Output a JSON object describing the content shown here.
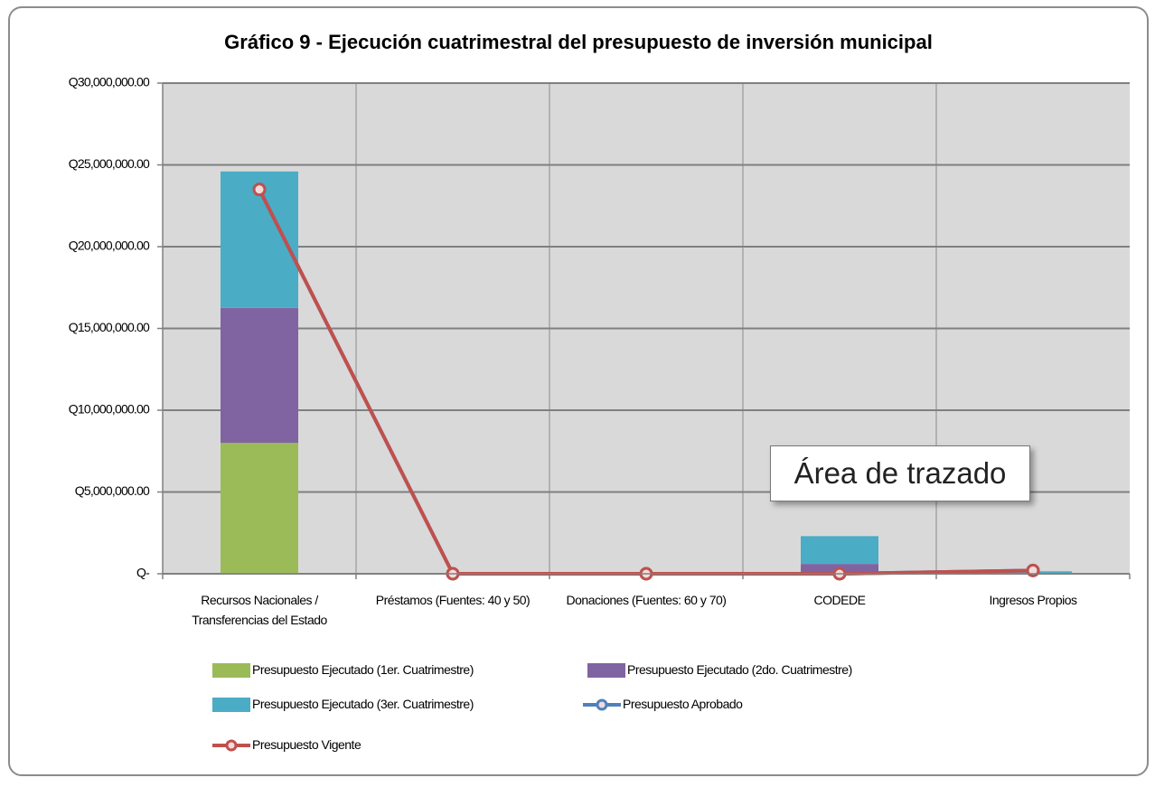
{
  "chart_data": {
    "type": "bar",
    "title": "Gráfico 9 - Ejecución cuatrimestral del presupuesto de inversión municipal",
    "categories": [
      "Recursos Nacionales / Transferencias del Estado",
      "Préstamos (Fuentes: 40 y 50)",
      "Donaciones (Fuentes: 60 y 70)",
      "CODEDE",
      "Ingresos Propios"
    ],
    "series": [
      {
        "name": "Presupuesto Ejecutado (1er. Cuatrimestre)",
        "type": "bar",
        "color": "#9bbb59",
        "values": [
          8000000,
          0,
          0,
          0,
          0
        ]
      },
      {
        "name": "Presupuesto Ejecutado (2do. Cuatrimestre)",
        "type": "bar",
        "color": "#8064a2",
        "values": [
          8250000,
          0,
          0,
          600000,
          0
        ]
      },
      {
        "name": "Presupuesto Ejecutado (3er. Cuatrimestre)",
        "type": "bar",
        "color": "#4bacc6",
        "values": [
          8350000,
          0,
          0,
          1700000,
          150000
        ]
      },
      {
        "name": "Presupuesto Aprobado",
        "type": "line",
        "color": "#4f81bd",
        "values": [
          23500000,
          0,
          0,
          0,
          200000
        ]
      },
      {
        "name": "Presupuesto Vigente",
        "type": "line",
        "color": "#c0504d",
        "values": [
          23500000,
          0,
          0,
          0,
          200000
        ]
      }
    ],
    "ylim": [
      0,
      30000000
    ],
    "yticks": [
      {
        "value": 0,
        "label": "Q-"
      },
      {
        "value": 5000000,
        "label": "Q5,000,000.00"
      },
      {
        "value": 10000000,
        "label": "Q10,000,000.00"
      },
      {
        "value": 15000000,
        "label": "Q15,000,000.00"
      },
      {
        "value": 20000000,
        "label": "Q20,000,000.00"
      },
      {
        "value": 25000000,
        "label": "Q25,000,000.00"
      },
      {
        "value": 30000000,
        "label": "Q30,000,000.00"
      }
    ],
    "grid": true,
    "legend": "bottom",
    "annotation": "Área de trazado"
  }
}
